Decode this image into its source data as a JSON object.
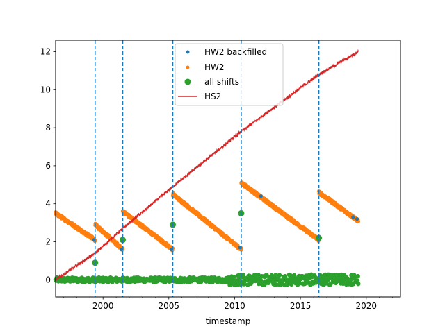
{
  "chart_data": {
    "type": "scatter",
    "title": "",
    "xlabel": "timestamp",
    "ylabel": "",
    "xlim": [
      1996.4,
      2022.6
    ],
    "ylim": [
      -0.9,
      12.6
    ],
    "x_ticks": [
      2000,
      2005,
      2010,
      2015,
      2020
    ],
    "x_tick_labels": [
      "2000",
      "2005",
      "2010",
      "2015",
      "2020"
    ],
    "y_ticks": [
      0,
      2,
      4,
      6,
      8,
      10,
      12
    ],
    "y_tick_labels": [
      "0",
      "2",
      "4",
      "6",
      "8",
      "10",
      "12"
    ],
    "grid": false,
    "legend_position": "top-center",
    "vlines": {
      "x": [
        1999.4,
        2001.5,
        2005.3,
        2010.5,
        2016.4
      ],
      "color": "#1f77b4",
      "style": "dashed"
    },
    "series": [
      {
        "name": "HW2 backfilled",
        "kind": "points",
        "color": "#1f77b4",
        "x": [
          1999.3,
          2001.4,
          2005.2,
          2010.4,
          2012.0,
          2016.3,
          2019.0,
          2019.3
        ],
        "y": [
          2.1,
          1.6,
          1.6,
          1.7,
          4.4,
          2.2,
          3.3,
          3.2
        ]
      },
      {
        "name": "HW2",
        "kind": "sawtooth",
        "color": "#ff7f0e",
        "segments": [
          {
            "x": [
              1996.4,
              1999.4
            ],
            "y": [
              3.5,
              2.1
            ]
          },
          {
            "x": [
              1999.4,
              2001.5
            ],
            "y": [
              2.9,
              1.6
            ]
          },
          {
            "x": [
              2001.5,
              2005.3
            ],
            "y": [
              3.6,
              1.6
            ]
          },
          {
            "x": [
              2005.3,
              2010.5
            ],
            "y": [
              4.5,
              1.6
            ]
          },
          {
            "x": [
              2010.5,
              2016.4
            ],
            "y": [
              5.1,
              2.1
            ]
          },
          {
            "x": [
              2016.4,
              2019.4
            ],
            "y": [
              4.6,
              3.1
            ]
          }
        ]
      },
      {
        "name": "all shifts",
        "kind": "points",
        "color": "#2ca02c",
        "x": [
          1999.4,
          2001.5,
          2005.3,
          2010.5,
          2016.4
        ],
        "y": [
          0.9,
          2.1,
          2.9,
          3.5,
          2.2
        ],
        "band": {
          "x": [
            1996.4,
            2019.4
          ],
          "y": 0.0
        }
      },
      {
        "name": "HS2",
        "kind": "line",
        "color": "#d62728",
        "x": [
          1996.4,
          1999.4,
          2001.5,
          2005.3,
          2010.5,
          2016.4,
          2019.4
        ],
        "y": [
          0.0,
          1.4,
          2.7,
          4.9,
          7.8,
          10.8,
          12.0
        ]
      }
    ]
  }
}
